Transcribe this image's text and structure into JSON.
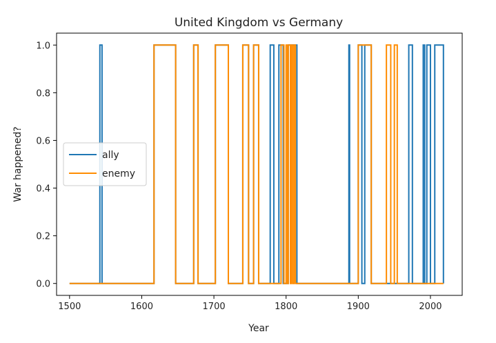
{
  "chart_data": {
    "type": "line",
    "title": "United Kingdom vs Germany",
    "xlabel": "Year",
    "ylabel": "War happened?",
    "xlim": [
      1482,
      2044
    ],
    "ylim": [
      -0.05,
      1.05
    ],
    "x_ticks": [
      1500,
      1600,
      1700,
      1800,
      1900,
      2000
    ],
    "y_ticks": [
      0.0,
      0.2,
      0.4,
      0.6,
      0.8,
      1.0
    ],
    "y_tick_labels": [
      "0.0",
      "0.2",
      "0.4",
      "0.6",
      "0.8",
      "1.0"
    ],
    "grid": false,
    "legend": "center-left",
    "series": [
      {
        "name": "ally",
        "color": "#1f77b4",
        "x_start": 1500,
        "x_end": 2018,
        "intervals": [
          [
            1542,
            1545
          ],
          [
            1617,
            1647
          ],
          [
            1672,
            1678
          ],
          [
            1702,
            1720
          ],
          [
            1740,
            1748
          ],
          [
            1755,
            1762
          ],
          [
            1778,
            1783
          ],
          [
            1790,
            1796
          ],
          [
            1803,
            1815
          ],
          [
            1887,
            1888
          ],
          [
            1900,
            1905
          ],
          [
            1909,
            1918
          ],
          [
            1970,
            1975
          ],
          [
            1990,
            1992
          ],
          [
            1995,
            2000
          ],
          [
            2006,
            2018
          ]
        ]
      },
      {
        "name": "enemy",
        "color": "#ff8c00",
        "x_start": 1500,
        "x_end": 2018,
        "intervals": [
          [
            1617,
            1647
          ],
          [
            1672,
            1678
          ],
          [
            1702,
            1720
          ],
          [
            1740,
            1748
          ],
          [
            1755,
            1762
          ],
          [
            1793,
            1797
          ],
          [
            1800,
            1802
          ],
          [
            1803,
            1806
          ],
          [
            1807,
            1809
          ],
          [
            1811,
            1813
          ],
          [
            1900,
            1918
          ],
          [
            1939,
            1945
          ],
          [
            1950,
            1954
          ]
        ]
      }
    ]
  }
}
